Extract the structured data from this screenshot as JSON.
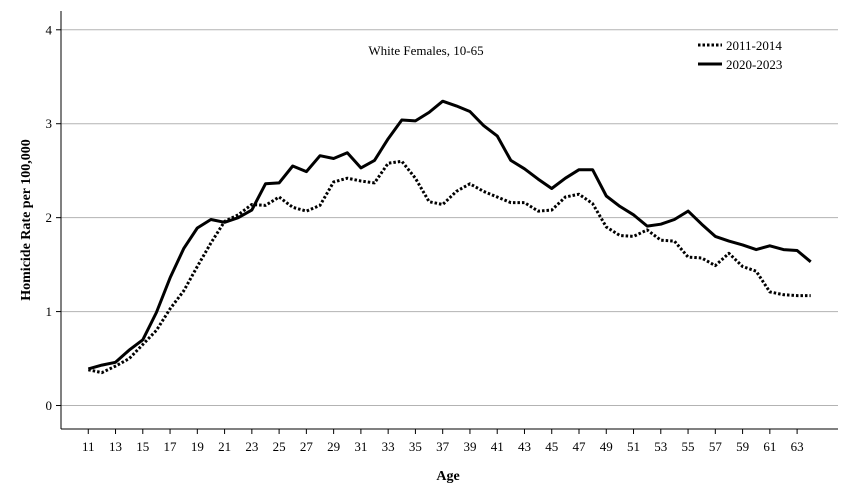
{
  "chart_data": {
    "type": "line",
    "title": "",
    "annotation": "White Females, 10-65",
    "xlabel": "Age",
    "ylabel": "Homicide Rate per 100,000",
    "xlim": [
      9,
      66
    ],
    "ylim": [
      -0.25,
      4.2
    ],
    "yticks": [
      0,
      1,
      2,
      3,
      4
    ],
    "xticks": [
      11,
      13,
      15,
      17,
      19,
      21,
      23,
      25,
      27,
      29,
      31,
      33,
      35,
      37,
      39,
      41,
      43,
      45,
      47,
      49,
      51,
      53,
      55,
      57,
      59,
      61,
      63
    ],
    "grid": "horizontal",
    "legend_position": "top-right",
    "x": [
      11,
      12,
      13,
      14,
      15,
      16,
      17,
      18,
      19,
      20,
      21,
      22,
      23,
      24,
      25,
      26,
      27,
      28,
      29,
      30,
      31,
      32,
      33,
      34,
      35,
      36,
      37,
      38,
      39,
      40,
      41,
      42,
      43,
      44,
      45,
      46,
      47,
      48,
      49,
      50,
      51,
      52,
      53,
      54,
      55,
      56,
      57,
      58,
      59,
      60,
      61,
      62,
      63,
      64
    ],
    "series": [
      {
        "name": "2011-2014",
        "style": "dotted",
        "values": [
          0.38,
          0.35,
          0.42,
          0.5,
          0.65,
          0.8,
          1.03,
          1.22,
          1.48,
          1.73,
          1.96,
          2.03,
          2.14,
          2.13,
          2.22,
          2.11,
          2.07,
          2.13,
          2.38,
          2.42,
          2.39,
          2.37,
          2.58,
          2.6,
          2.42,
          2.17,
          2.14,
          2.28,
          2.36,
          2.28,
          2.22,
          2.16,
          2.16,
          2.07,
          2.08,
          2.22,
          2.25,
          2.15,
          1.9,
          1.81,
          1.8,
          1.87,
          1.76,
          1.75,
          1.58,
          1.57,
          1.49,
          1.62,
          1.48,
          1.43,
          1.21,
          1.18,
          1.17,
          1.17
        ]
      },
      {
        "name": "2020-2023",
        "style": "solid",
        "values": [
          0.39,
          0.43,
          0.46,
          0.59,
          0.7,
          0.99,
          1.36,
          1.67,
          1.89,
          1.98,
          1.95,
          2.0,
          2.08,
          2.36,
          2.37,
          2.55,
          2.49,
          2.66,
          2.63,
          2.69,
          2.53,
          2.61,
          2.84,
          3.04,
          3.03,
          3.12,
          3.24,
          3.19,
          3.13,
          2.98,
          2.87,
          2.61,
          2.52,
          2.41,
          2.31,
          2.42,
          2.51,
          2.51,
          2.23,
          2.12,
          2.03,
          1.91,
          1.93,
          1.98,
          2.07,
          1.93,
          1.8,
          1.75,
          1.71,
          1.66,
          1.7,
          1.66,
          1.65,
          1.53
        ]
      }
    ]
  }
}
